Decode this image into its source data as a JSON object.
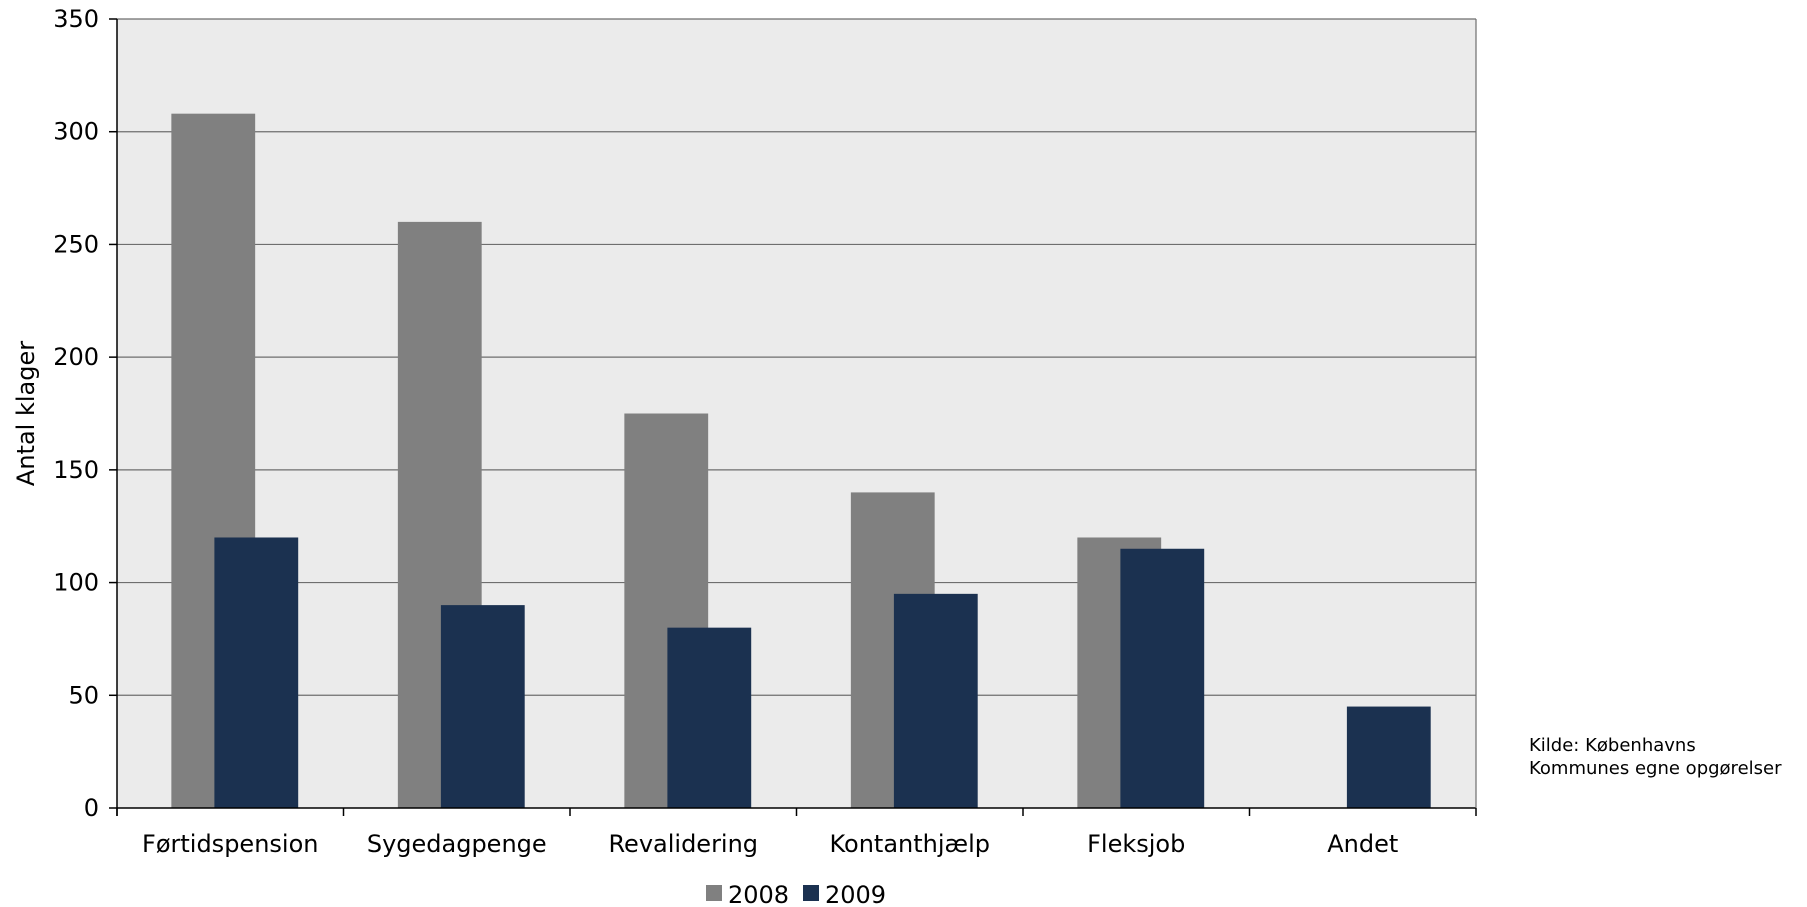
{
  "chart_data": {
    "type": "bar",
    "categories": [
      "Førtidspension",
      "Sygedagpenge",
      "Revalidering",
      "Kontanthjælp",
      "Fleksjob",
      "Andet"
    ],
    "series": [
      {
        "name": "2008",
        "values": [
          308,
          260,
          175,
          140,
          120,
          0
        ],
        "color": "#808080"
      },
      {
        "name": "2009",
        "values": [
          120,
          90,
          80,
          95,
          115,
          45
        ],
        "color": "#1b3150"
      }
    ],
    "ylabel": "Antal klager",
    "ylim": [
      0,
      350
    ],
    "yticks": [
      0,
      50,
      100,
      150,
      200,
      250,
      300,
      350
    ],
    "grid": true,
    "legend": "bottom-center",
    "plot_background": "#ebebeb",
    "gridline_color": "#6e6e6e"
  },
  "source_note": {
    "line1": "Kilde: Københavns",
    "line2": "Kommunes egne opgørelser"
  }
}
